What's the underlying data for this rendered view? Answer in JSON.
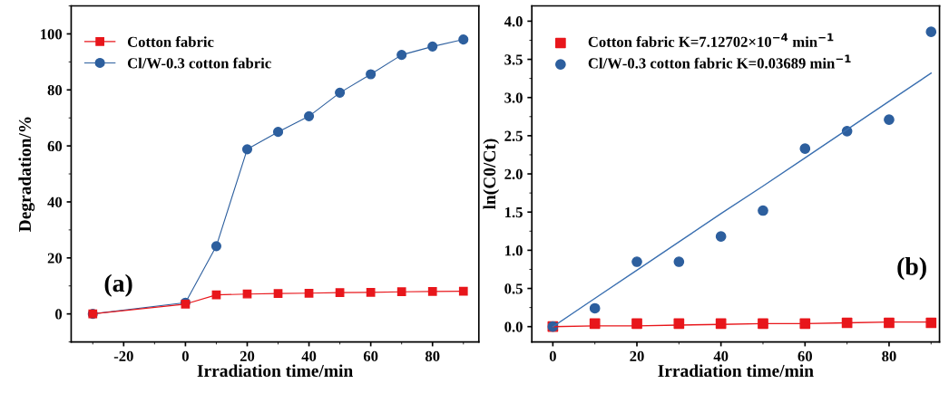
{
  "chart_data": [
    {
      "type": "line",
      "xlabel": "Irradiation time/min",
      "ylabel": "Degradation/%",
      "xlim": [
        -37,
        95
      ],
      "xticks": [
        -20,
        0,
        20,
        40,
        60,
        80
      ],
      "ylim": [
        -10,
        110
      ],
      "yticks": [
        0,
        20,
        40,
        60,
        80,
        100
      ],
      "grid": false,
      "legend": "top left",
      "annotations": [
        "(a)"
      ],
      "x": [
        -30,
        0,
        10,
        20,
        30,
        40,
        50,
        60,
        70,
        80,
        90
      ],
      "series": [
        {
          "name": "Cotton fabric",
          "color": "#e8161b",
          "marker": "square",
          "values": [
            0,
            3.5,
            6.8,
            7.1,
            7.3,
            7.4,
            7.6,
            7.7,
            7.9,
            8.0,
            8.1
          ]
        },
        {
          "name": "Cl/W-0.3 cotton fabric",
          "color": "#2d5f9e",
          "marker": "circle",
          "values": [
            0,
            4,
            24.2,
            58.8,
            65,
            70.6,
            79,
            85.6,
            92.5,
            95.5,
            98
          ]
        }
      ]
    },
    {
      "type": "scatter",
      "xlabel": "Irradiation time/min",
      "ylabel": "ln(C0/Ct)",
      "xlim": [
        -5,
        92
      ],
      "xticks": [
        0,
        20,
        40,
        60,
        80
      ],
      "ylim": [
        -0.2,
        4.2
      ],
      "yticks": [
        {
          "value": 0,
          "label": "0.0"
        },
        0.5,
        {
          "value": 1,
          "label": "1.0"
        },
        1.5,
        {
          "value": 2,
          "label": "2.0"
        },
        2.5,
        {
          "value": 3,
          "label": "3.0"
        },
        3.5,
        {
          "value": 4,
          "label": "4.0"
        }
      ],
      "grid": false,
      "legend": "top left",
      "annotations": [
        "(b)"
      ],
      "x": [
        0,
        10,
        20,
        30,
        40,
        50,
        60,
        70,
        80,
        90
      ],
      "series": [
        {
          "name": "Cotton fabric K=7.12702×10$^{−4}$ min$^{−1}$",
          "color": "#e8161b",
          "marker": "square",
          "values": [
            0,
            0.04,
            0.04,
            0.04,
            0.04,
            0.04,
            0.04,
            0.05,
            0.05,
            0.05
          ]
        },
        {
          "name": "Cl/W-0.3 cotton fabric K=0.03689 min$^{−1}$",
          "color": "#2d5f9e",
          "marker": "circle",
          "values": [
            0,
            0.24,
            0.85,
            0.85,
            1.18,
            1.52,
            2.33,
            2.56,
            2.71,
            3.86
          ]
        },
        {
          "type": "line",
          "color": "#e8161b",
          "values": [
            0,
            0.01,
            0.01,
            0.02,
            0.03,
            0.04,
            0.04,
            0.05,
            0.06,
            0.06
          ]
        },
        {
          "type": "line",
          "color": "#3a6fb0",
          "values": [
            0,
            0.37,
            0.74,
            1.11,
            1.48,
            1.84,
            2.21,
            2.58,
            2.95,
            3.32
          ]
        }
      ]
    }
  ]
}
